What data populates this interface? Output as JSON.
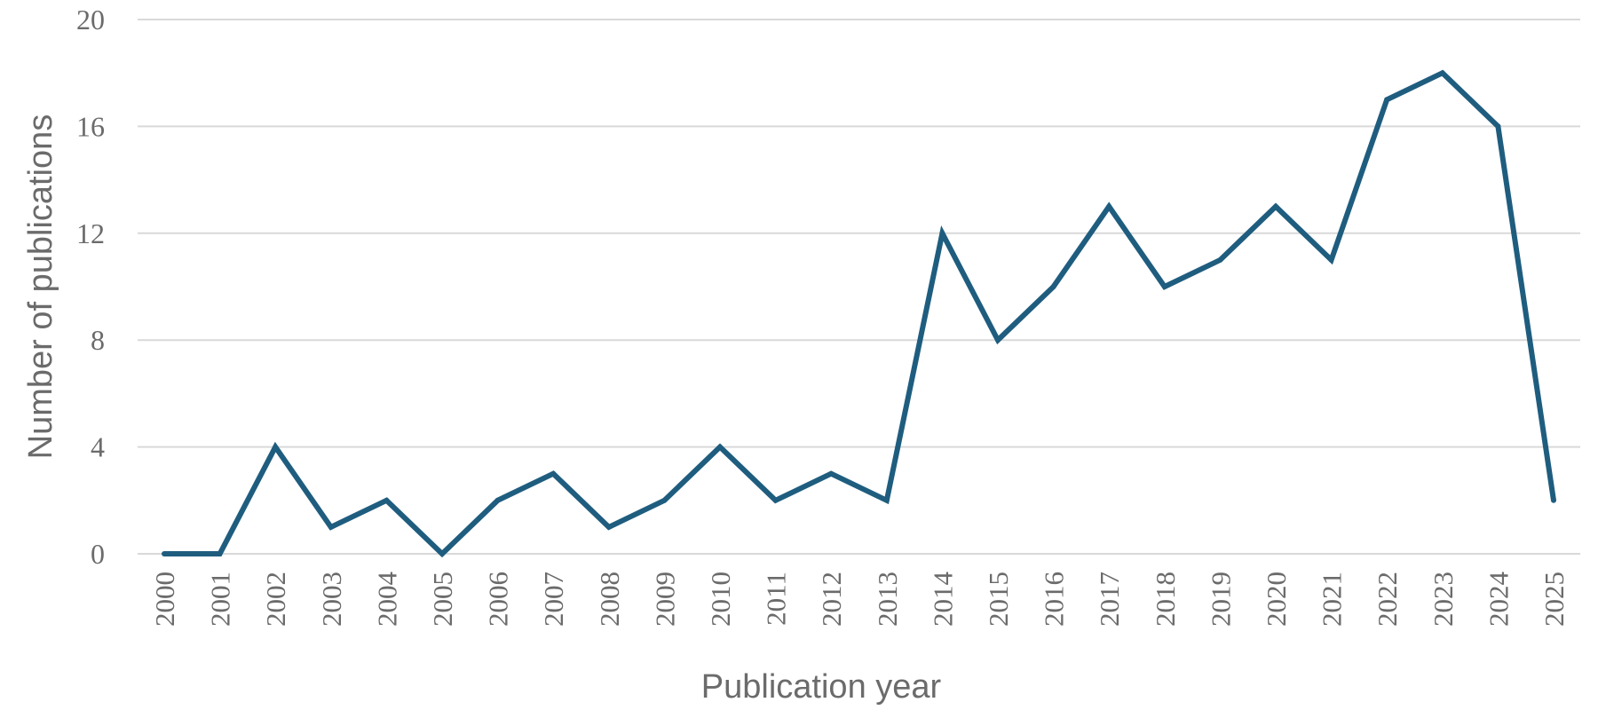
{
  "chart_data": {
    "type": "line",
    "xlabel": "Publication year",
    "ylabel": "Number of publications",
    "ylim": [
      0,
      20
    ],
    "yticks": [
      0,
      4,
      8,
      12,
      16,
      20
    ],
    "grid": true,
    "legend": "none",
    "categories": [
      "2000",
      "2001",
      "2002",
      "2003",
      "2004",
      "2005",
      "2006",
      "2007",
      "2008",
      "2009",
      "2010",
      "2011",
      "2012",
      "2013",
      "2014",
      "2015",
      "2016",
      "2017",
      "2018",
      "2019",
      "2020",
      "2021",
      "2022",
      "2023",
      "2024",
      "2025"
    ],
    "series": [
      {
        "color": "#1f5d7f",
        "values": [
          0,
          0,
          4,
          1,
          2,
          0,
          2,
          3,
          1,
          2,
          4,
          2,
          3,
          2,
          12,
          8,
          10,
          13,
          10,
          11,
          13,
          11,
          17,
          18,
          16,
          2
        ]
      }
    ]
  }
}
